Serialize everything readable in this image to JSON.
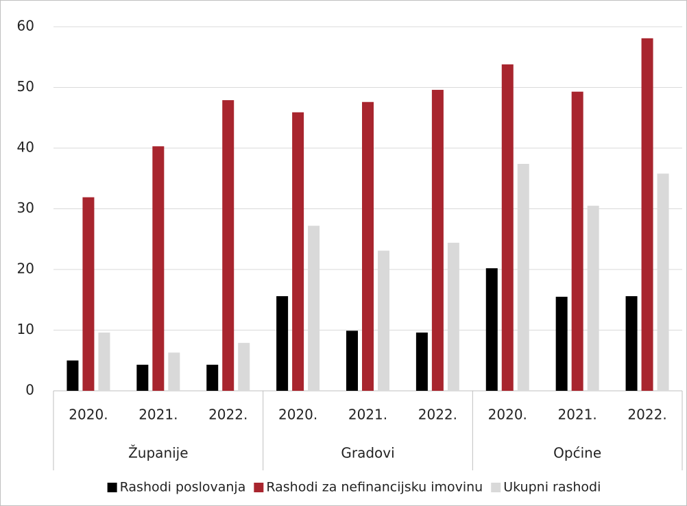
{
  "chart_data": {
    "type": "bar",
    "categories": [
      "2020.",
      "2021.",
      "2022.",
      "2020.",
      "2021.",
      "2022.",
      "2020.",
      "2021.",
      "2022."
    ],
    "groups": [
      "Županije",
      "Gradovi",
      "Općine"
    ],
    "series": [
      {
        "name": "Rashodi poslovanja",
        "color": "#000000",
        "values": [
          5.0,
          4.3,
          4.3,
          15.6,
          9.9,
          9.6,
          20.2,
          15.5,
          15.6
        ]
      },
      {
        "name": "Rashodi za nefinancijsku imovinu",
        "color": "#a8252e",
        "values": [
          31.9,
          40.3,
          47.9,
          45.9,
          47.6,
          49.6,
          53.8,
          49.3,
          58.1
        ]
      },
      {
        "name": "Ukupni rashodi",
        "color": "#d9d9d9",
        "values": [
          9.6,
          6.3,
          7.9,
          27.2,
          23.1,
          24.4,
          37.4,
          30.5,
          35.8
        ]
      }
    ],
    "ylim": [
      0,
      60
    ],
    "yticks": [
      0,
      10,
      20,
      30,
      40,
      50,
      60
    ],
    "grid": true,
    "legend": "bottom"
  }
}
